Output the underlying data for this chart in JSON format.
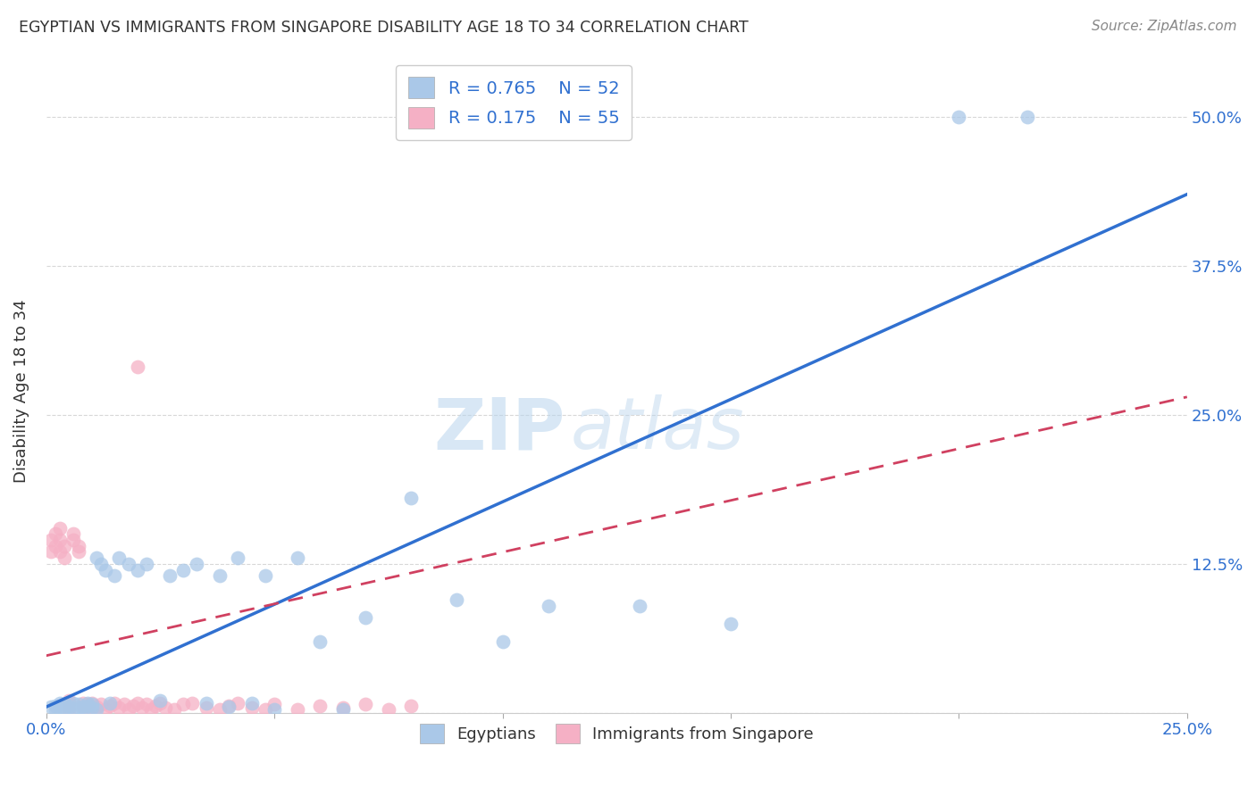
{
  "title": "EGYPTIAN VS IMMIGRANTS FROM SINGAPORE DISABILITY AGE 18 TO 34 CORRELATION CHART",
  "source": "Source: ZipAtlas.com",
  "ylabel": "Disability Age 18 to 34",
  "xlim": [
    0.0,
    0.25
  ],
  "ylim": [
    0.0,
    0.54
  ],
  "xticks": [
    0.0,
    0.05,
    0.1,
    0.15,
    0.2,
    0.25
  ],
  "yticks": [
    0.0,
    0.125,
    0.25,
    0.375,
    0.5
  ],
  "xticklabels": [
    "0.0%",
    "",
    "",
    "",
    "",
    "25.0%"
  ],
  "yticklabels": [
    "",
    "12.5%",
    "25.0%",
    "37.5%",
    "50.0%"
  ],
  "legend_labels": [
    "Egyptians",
    "Immigrants from Singapore"
  ],
  "blue_R": 0.765,
  "blue_N": 52,
  "pink_R": 0.175,
  "pink_N": 55,
  "blue_color": "#aac8e8",
  "pink_color": "#f5b0c5",
  "blue_line_color": "#3070d0",
  "pink_line_color": "#d04060",
  "watermark_zip": "ZIP",
  "watermark_atlas": "atlas",
  "blue_line_x0": 0.0,
  "blue_line_y0": 0.005,
  "blue_line_x1": 0.25,
  "blue_line_y1": 0.435,
  "pink_line_x0": 0.0,
  "pink_line_y0": 0.048,
  "pink_line_x1": 0.25,
  "pink_line_y1": 0.265,
  "blue_scatter_x": [
    0.001,
    0.002,
    0.002,
    0.003,
    0.003,
    0.004,
    0.004,
    0.005,
    0.005,
    0.006,
    0.006,
    0.007,
    0.007,
    0.008,
    0.008,
    0.009,
    0.009,
    0.01,
    0.01,
    0.011,
    0.011,
    0.012,
    0.013,
    0.014,
    0.015,
    0.016,
    0.018,
    0.02,
    0.022,
    0.025,
    0.027,
    0.03,
    0.033,
    0.035,
    0.038,
    0.04,
    0.042,
    0.045,
    0.048,
    0.05,
    0.055,
    0.06,
    0.065,
    0.07,
    0.08,
    0.09,
    0.1,
    0.11,
    0.13,
    0.15,
    0.2,
    0.215
  ],
  "blue_scatter_y": [
    0.005,
    0.006,
    0.003,
    0.008,
    0.004,
    0.007,
    0.003,
    0.006,
    0.004,
    0.008,
    0.003,
    0.007,
    0.004,
    0.005,
    0.003,
    0.006,
    0.008,
    0.004,
    0.007,
    0.003,
    0.13,
    0.125,
    0.12,
    0.008,
    0.115,
    0.13,
    0.125,
    0.12,
    0.125,
    0.01,
    0.115,
    0.12,
    0.125,
    0.008,
    0.115,
    0.005,
    0.13,
    0.008,
    0.115,
    0.003,
    0.13,
    0.06,
    0.003,
    0.08,
    0.18,
    0.095,
    0.06,
    0.09,
    0.09,
    0.075,
    0.5,
    0.5
  ],
  "pink_scatter_x": [
    0.001,
    0.001,
    0.002,
    0.002,
    0.003,
    0.003,
    0.003,
    0.004,
    0.004,
    0.005,
    0.005,
    0.005,
    0.006,
    0.006,
    0.007,
    0.007,
    0.008,
    0.008,
    0.009,
    0.009,
    0.01,
    0.01,
    0.011,
    0.012,
    0.013,
    0.014,
    0.015,
    0.016,
    0.017,
    0.018,
    0.019,
    0.02,
    0.021,
    0.022,
    0.023,
    0.024,
    0.025,
    0.026,
    0.028,
    0.03,
    0.032,
    0.035,
    0.038,
    0.04,
    0.042,
    0.045,
    0.048,
    0.05,
    0.055,
    0.06,
    0.065,
    0.07,
    0.075,
    0.08,
    0.02
  ],
  "pink_scatter_y": [
    0.145,
    0.135,
    0.15,
    0.14,
    0.155,
    0.145,
    0.135,
    0.14,
    0.13,
    0.01,
    0.008,
    0.003,
    0.15,
    0.145,
    0.14,
    0.135,
    0.008,
    0.005,
    0.007,
    0.004,
    0.008,
    0.003,
    0.005,
    0.007,
    0.003,
    0.006,
    0.008,
    0.004,
    0.007,
    0.003,
    0.006,
    0.008,
    0.004,
    0.007,
    0.003,
    0.006,
    0.008,
    0.004,
    0.003,
    0.007,
    0.008,
    0.004,
    0.003,
    0.006,
    0.008,
    0.004,
    0.003,
    0.007,
    0.003,
    0.006,
    0.004,
    0.007,
    0.003,
    0.006,
    0.29
  ]
}
